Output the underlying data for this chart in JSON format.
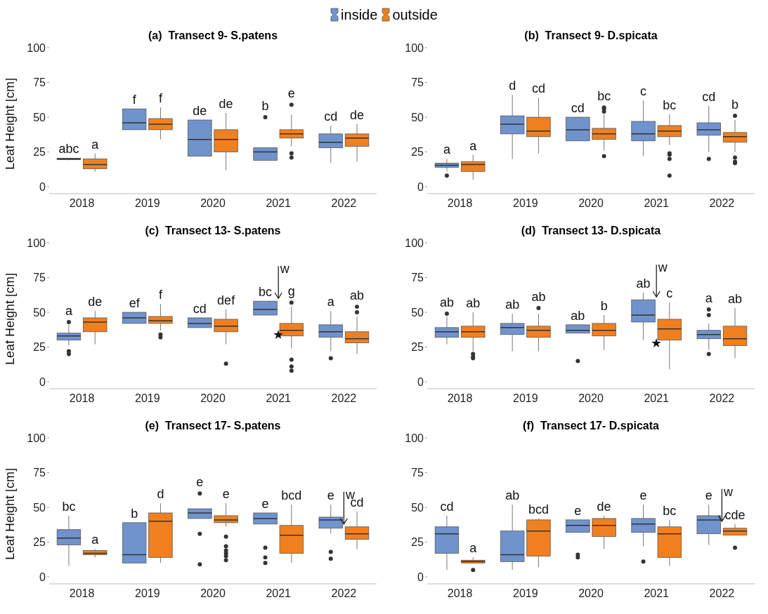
{
  "chart_data": [
    {
      "type": "box",
      "title": "(a)  Transect 9- S.patens",
      "ylabel": "Leaf Height [cm]",
      "legend": "top",
      "ylim": [
        -5,
        100
      ],
      "yticks": [
        0,
        25,
        50,
        75,
        100
      ],
      "categories": [
        "2018",
        "2019",
        "2020",
        "2021",
        "2022"
      ],
      "series": [
        {
          "name": "inside",
          "color": "#7093cd",
          "value_labels": [
            "abc",
            "f",
            "de",
            "b",
            "cd"
          ],
          "boxes": [
            {
              "low": 19,
              "q1": 19.5,
              "median": 20,
              "q3": 20.5,
              "high": 20.5
            },
            {
              "low": 41,
              "q1": 41,
              "median": 46,
              "q3": 56,
              "high": 56
            },
            {
              "low": 22,
              "q1": 22,
              "median": 34,
              "q3": 48,
              "high": 48
            },
            {
              "low": 19,
              "q1": 19,
              "median": 25,
              "q3": 28,
              "high": 28,
              "outliers": [
                50
              ]
            },
            {
              "low": 17,
              "q1": 28,
              "median": 32,
              "q3": 38,
              "high": 44
            }
          ]
        },
        {
          "name": "outside",
          "color": "#f0801f",
          "value_labels": [
            "a",
            "f",
            "de",
            "e",
            "de"
          ],
          "boxes": [
            {
              "low": 11,
              "q1": 13,
              "median": 16,
              "q3": 20,
              "high": 24
            },
            {
              "low": 34,
              "q1": 41,
              "median": 45,
              "q3": 49,
              "high": 57
            },
            {
              "low": 12,
              "q1": 25,
              "median": 34,
              "q3": 41,
              "high": 53
            },
            {
              "low": 29,
              "q1": 35,
              "median": 38,
              "q3": 41,
              "high": 52,
              "outliers": [
                59,
                24,
                21
              ]
            },
            {
              "low": 18,
              "q1": 29,
              "median": 35,
              "q3": 38,
              "high": 45
            }
          ]
        }
      ]
    },
    {
      "type": "box",
      "title": "(b)  Transect 9- D.spicata",
      "ylim": [
        -5,
        100
      ],
      "yticks": [
        0,
        25,
        50,
        75,
        100
      ],
      "categories": [
        "2018",
        "2019",
        "2020",
        "2021",
        "2022"
      ],
      "series": [
        {
          "color": "#7093cd",
          "value_labels": [
            "a",
            "d",
            "cd",
            "c",
            "cd"
          ],
          "boxes": [
            {
              "low": 11,
              "q1": 14,
              "median": 15.5,
              "q3": 17,
              "high": 20,
              "outliers": [
                8
              ]
            },
            {
              "low": 20,
              "q1": 38,
              "median": 45,
              "q3": 51,
              "high": 66
            },
            {
              "low": 33,
              "q1": 33,
              "median": 41,
              "q3": 50,
              "high": 50
            },
            {
              "low": 22,
              "q1": 33,
              "median": 38,
              "q3": 47,
              "high": 62
            },
            {
              "low": 25,
              "q1": 37,
              "median": 41,
              "q3": 46,
              "high": 58,
              "outliers": [
                20
              ]
            }
          ]
        },
        {
          "color": "#f0801f",
          "value_labels": [
            "a",
            "cd",
            "bc",
            "bc",
            "b"
          ],
          "boxes": [
            {
              "low": 5,
              "q1": 11,
              "median": 16,
              "q3": 18,
              "high": 23
            },
            {
              "low": 24,
              "q1": 36,
              "median": 40,
              "q3": 50,
              "high": 64
            },
            {
              "low": 26,
              "q1": 34,
              "median": 38,
              "q3": 42,
              "high": 52,
              "outliers": [
                57,
                56,
                54,
                22
              ]
            },
            {
              "low": 30,
              "q1": 36,
              "median": 40,
              "q3": 44,
              "high": 52,
              "outliers": [
                24,
                23,
                20,
                8
              ]
            },
            {
              "low": 25,
              "q1": 32,
              "median": 36,
              "q3": 39,
              "high": 48,
              "outliers": [
                51,
                21,
                18,
                17
              ]
            }
          ]
        }
      ]
    },
    {
      "type": "box",
      "title": "(c)  Transect 13- S.patens",
      "ylabel": "Leaf Height [cm]",
      "ylim": [
        -5,
        100
      ],
      "yticks": [
        0,
        25,
        50,
        75,
        100
      ],
      "categories": [
        "2018",
        "2019",
        "2020",
        "2021",
        "2022"
      ],
      "series": [
        {
          "color": "#7093cd",
          "value_labels": [
            "a",
            "ef",
            "cd",
            "bc",
            "a"
          ],
          "boxes": [
            {
              "low": 26,
              "q1": 30,
              "median": 33,
              "q3": 35,
              "high": 41,
              "outliers": [
                43,
                22,
                20
              ]
            },
            {
              "low": 42,
              "q1": 42,
              "median": 46,
              "q3": 50,
              "high": 50
            },
            {
              "low": 39,
              "q1": 39,
              "median": 42,
              "q3": 46,
              "high": 46
            },
            {
              "low": 48,
              "q1": 48,
              "median": 52,
              "q3": 58,
              "high": 58
            },
            {
              "low": 22,
              "q1": 32,
              "median": 36,
              "q3": 41,
              "high": 51,
              "outliers": [
                17
              ]
            }
          ]
        },
        {
          "color": "#f0801f",
          "value_labels": [
            "de",
            "f",
            "def",
            "g",
            "ab"
          ],
          "boxes": [
            {
              "low": 27,
              "q1": 36,
              "median": 43,
              "q3": 46,
              "high": 51
            },
            {
              "low": 37,
              "q1": 42,
              "median": 44,
              "q3": 47,
              "high": 56,
              "outliers": [
                34,
                32
              ]
            },
            {
              "low": 27,
              "q1": 36,
              "median": 40,
              "q3": 45,
              "high": 52,
              "outliers": [
                13
              ]
            },
            {
              "low": 24,
              "q1": 33,
              "median": 37,
              "q3": 42,
              "high": 54,
              "outliers": [
                57,
                16,
                11,
                8
              ]
            },
            {
              "low": 20,
              "q1": 28,
              "median": 31,
              "q3": 36,
              "high": 47,
              "outliers": [
                54,
                50
              ]
            }
          ]
        }
      ],
      "annotations": [
        {
          "text": "w",
          "x": "2021",
          "y": 58
        },
        {
          "text": "★",
          "x": "2021",
          "y": 34
        }
      ]
    },
    {
      "type": "box",
      "title": "(d)  Transect 13- D.spicata",
      "ylim": [
        -5,
        100
      ],
      "yticks": [
        0,
        25,
        50,
        75,
        100
      ],
      "categories": [
        "2018",
        "2019",
        "2020",
        "2021",
        "2022"
      ],
      "series": [
        {
          "color": "#7093cd",
          "value_labels": [
            "ab",
            "ab",
            "ab",
            "ab",
            "a"
          ],
          "boxes": [
            {
              "low": 27,
              "q1": 32,
              "median": 36,
              "q3": 39,
              "high": 47,
              "outliers": [
                49
              ]
            },
            {
              "low": 22,
              "q1": 34,
              "median": 39,
              "q3": 42,
              "high": 49
            },
            {
              "low": 35,
              "q1": 35,
              "median": 37,
              "q3": 41,
              "high": 41,
              "outliers": [
                15
              ]
            },
            {
              "low": 30,
              "q1": 43,
              "median": 48,
              "q3": 59,
              "high": 64
            },
            {
              "low": 23,
              "q1": 31,
              "median": 34,
              "q3": 37,
              "high": 42,
              "outliers": [
                52,
                48,
                20
              ]
            }
          ]
        },
        {
          "color": "#f0801f",
          "value_labels": [
            "ab",
            "ab",
            "b",
            "c",
            "ab"
          ],
          "boxes": [
            {
              "low": 22,
              "q1": 32,
              "median": 36,
              "q3": 40,
              "high": 50,
              "outliers": [
                20,
                18,
                17
              ]
            },
            {
              "low": 22,
              "q1": 32,
              "median": 37,
              "q3": 40,
              "high": 49,
              "outliers": [
                53
              ]
            },
            {
              "low": 23,
              "q1": 33,
              "median": 37,
              "q3": 42,
              "high": 48
            },
            {
              "low": 9,
              "q1": 30,
              "median": 38,
              "q3": 45,
              "high": 57
            },
            {
              "low": 17,
              "q1": 26,
              "median": 31,
              "q3": 40,
              "high": 53
            }
          ]
        }
      ],
      "annotations": [
        {
          "text": "w",
          "x": "2021",
          "y": 59
        },
        {
          "text": "★",
          "x": "2021",
          "y": 28
        }
      ]
    },
    {
      "type": "box",
      "title": "(e)  Transect 17- S.patens",
      "ylabel": "Leaf Height [cm]",
      "ylim": [
        -5,
        100
      ],
      "yticks": [
        0,
        25,
        50,
        75,
        100
      ],
      "categories": [
        "2018",
        "2019",
        "2020",
        "2021",
        "2022"
      ],
      "series": [
        {
          "color": "#7093cd",
          "value_labels": [
            "bc",
            "b",
            "e",
            "e",
            "e"
          ],
          "boxes": [
            {
              "low": 8,
              "q1": 23,
              "median": 28,
              "q3": 34,
              "high": 44
            },
            {
              "low": 10,
              "q1": 10,
              "median": 16,
              "q3": 39,
              "high": 39
            },
            {
              "low": 42,
              "q1": 42,
              "median": 46,
              "q3": 49,
              "high": 49,
              "outliers": [
                60,
                31,
                9
              ]
            },
            {
              "low": 38,
              "q1": 38,
              "median": 42,
              "q3": 46,
              "high": 46,
              "outliers": [
                21,
                14,
                10
              ]
            },
            {
              "low": 31,
              "q1": 35,
              "median": 41,
              "q3": 43,
              "high": 52,
              "outliers": [
                18,
                13
              ]
            }
          ]
        },
        {
          "color": "#f0801f",
          "value_labels": [
            "a",
            "d",
            "e",
            "bcd",
            "cd"
          ],
          "boxes": [
            {
              "low": 14,
              "q1": 16,
              "median": 17,
              "q3": 19,
              "high": 20
            },
            {
              "low": 10,
              "q1": 14,
              "median": 40,
              "q3": 46,
              "high": 53
            },
            {
              "low": 36,
              "q1": 39,
              "median": 41,
              "q3": 44,
              "high": 53,
              "outliers": [
                29,
                22,
                19,
                17,
                15,
                12
              ]
            },
            {
              "low": 10,
              "q1": 17,
              "median": 30,
              "q3": 37,
              "high": 52
            },
            {
              "low": 20,
              "q1": 27,
              "median": 31,
              "q3": 36,
              "high": 47
            }
          ]
        }
      ],
      "annotations": [
        {
          "text": "w",
          "x": "2022",
          "y": 36
        }
      ]
    },
    {
      "type": "box",
      "title": "(f)  Transect 17- D.spicata",
      "ylim": [
        -5,
        100
      ],
      "yticks": [
        0,
        25,
        50,
        75,
        100
      ],
      "categories": [
        "2018",
        "2019",
        "2020",
        "2021",
        "2022"
      ],
      "series": [
        {
          "color": "#7093cd",
          "value_labels": [
            "cd",
            "ab",
            "e",
            "e",
            "e"
          ],
          "boxes": [
            {
              "low": 5,
              "q1": 17,
              "median": 31,
              "q3": 36,
              "high": 44
            },
            {
              "low": 5,
              "q1": 11,
              "median": 16,
              "q3": 33,
              "high": 52
            },
            {
              "low": 32,
              "q1": 32,
              "median": 37,
              "q3": 41,
              "high": 41,
              "outliers": [
                16,
                14
              ]
            },
            {
              "low": 22,
              "q1": 32,
              "median": 38,
              "q3": 42,
              "high": 52,
              "outliers": [
                11
              ]
            },
            {
              "low": 23,
              "q1": 31,
              "median": 41,
              "q3": 44,
              "high": 52
            }
          ]
        },
        {
          "color": "#f0801f",
          "value_labels": [
            "a",
            "bcd",
            "de",
            "bc",
            "cde"
          ],
          "boxes": [
            {
              "low": 10,
              "q1": 10,
              "median": 11,
              "q3": 12,
              "high": 14,
              "outliers": [
                5
              ]
            },
            {
              "low": 7,
              "q1": 15,
              "median": 33,
              "q3": 41,
              "high": 42
            },
            {
              "low": 20,
              "q1": 29,
              "median": 37,
              "q3": 42,
              "high": 44
            },
            {
              "low": 8,
              "q1": 14,
              "median": 31,
              "q3": 36,
              "high": 41
            },
            {
              "low": 30,
              "q1": 30,
              "median": 33,
              "q3": 35,
              "high": 38,
              "outliers": [
                21
              ]
            }
          ]
        }
      ],
      "annotations": [
        {
          "text": "w",
          "x": "2022",
          "y": 38
        }
      ]
    }
  ]
}
